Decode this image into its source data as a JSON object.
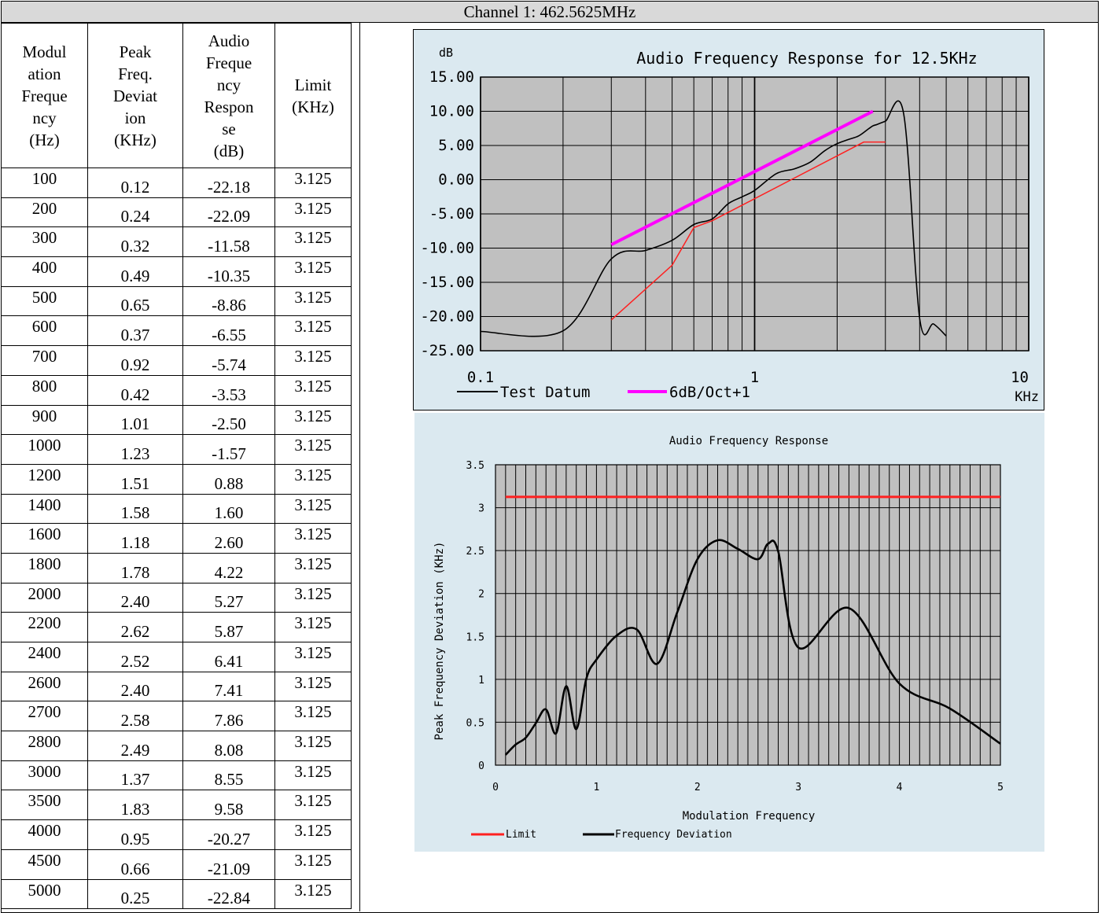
{
  "header": {
    "title": "Channel 1: 462.5625MHz"
  },
  "table": {
    "headers": [
      [
        "Modul",
        "ation",
        "Freque",
        "ncy",
        "(Hz)"
      ],
      [
        "Peak",
        "Freq.",
        "Deviat",
        "ion",
        "(KHz)"
      ],
      [
        "Audio",
        "Freque",
        "ncy",
        "Respon",
        "se",
        "(dB)"
      ],
      [
        "Limit",
        "(KHz)"
      ]
    ],
    "rows": [
      [
        "100",
        "0.12",
        "-22.18",
        "3.125"
      ],
      [
        "200",
        "0.24",
        "-22.09",
        "3.125"
      ],
      [
        "300",
        "0.32",
        "-11.58",
        "3.125"
      ],
      [
        "400",
        "0.49",
        "-10.35",
        "3.125"
      ],
      [
        "500",
        "0.65",
        "-8.86",
        "3.125"
      ],
      [
        "600",
        "0.37",
        "-6.55",
        "3.125"
      ],
      [
        "700",
        "0.92",
        "-5.74",
        "3.125"
      ],
      [
        "800",
        "0.42",
        "-3.53",
        "3.125"
      ],
      [
        "900",
        "1.01",
        "-2.50",
        "3.125"
      ],
      [
        "1000",
        "1.23",
        "-1.57",
        "3.125"
      ],
      [
        "1200",
        "1.51",
        "0.88",
        "3.125"
      ],
      [
        "1400",
        "1.58",
        "1.60",
        "3.125"
      ],
      [
        "1600",
        "1.18",
        "2.60",
        "3.125"
      ],
      [
        "1800",
        "1.78",
        "4.22",
        "3.125"
      ],
      [
        "2000",
        "2.40",
        "5.27",
        "3.125"
      ],
      [
        "2200",
        "2.62",
        "5.87",
        "3.125"
      ],
      [
        "2400",
        "2.52",
        "6.41",
        "3.125"
      ],
      [
        "2600",
        "2.40",
        "7.41",
        "3.125"
      ],
      [
        "2700",
        "2.58",
        "7.86",
        "3.125"
      ],
      [
        "2800",
        "2.49",
        "8.08",
        "3.125"
      ],
      [
        "3000",
        "1.37",
        "8.55",
        "3.125"
      ],
      [
        "3500",
        "1.83",
        "9.58",
        "3.125"
      ],
      [
        "4000",
        "0.95",
        "-20.27",
        "3.125"
      ],
      [
        "4500",
        "0.66",
        "-21.09",
        "3.125"
      ],
      [
        "5000",
        "0.25",
        "-22.84",
        "3.125"
      ]
    ]
  },
  "chart_data": [
    {
      "type": "line",
      "title": "Audio Frequency Response for 12.5KHz",
      "ylabel": "dB",
      "xlabel": "KHz",
      "x_scale": "log",
      "xlim": [
        0.1,
        10
      ],
      "ylim": [
        -25,
        15
      ],
      "x_tick_labels": [
        "0.1",
        "1",
        "10"
      ],
      "y_tick_labels": [
        "15.00",
        "10.00",
        "5.00",
        "0.00",
        "-5.00",
        "-10.00",
        "-15.00",
        "-20.00",
        "-25.00"
      ],
      "grid": true,
      "legend_position": "bottom",
      "background": "#c0c0c0",
      "series": [
        {
          "name": "Test Datum",
          "color": "#000000",
          "x": [
            0.1,
            0.2,
            0.3,
            0.4,
            0.5,
            0.6,
            0.7,
            0.8,
            0.9,
            1.0,
            1.2,
            1.4,
            1.6,
            1.8,
            2.0,
            2.2,
            2.4,
            2.6,
            2.7,
            2.8,
            3.0,
            3.5,
            4.0,
            4.5,
            5.0
          ],
          "y": [
            -22.18,
            -22.09,
            -11.58,
            -10.35,
            -8.86,
            -6.55,
            -5.74,
            -3.53,
            -2.5,
            -1.57,
            0.88,
            1.6,
            2.6,
            4.22,
            5.27,
            5.87,
            6.41,
            7.41,
            7.86,
            8.08,
            8.55,
            9.58,
            -20.27,
            -21.09,
            -22.84
          ]
        },
        {
          "name": "6dB/Oct+1",
          "color": "#ff00ff",
          "x": [
            0.3,
            2.7
          ],
          "y": [
            -9.5,
            10
          ]
        },
        {
          "name": "",
          "color": "#ff2020",
          "x": [
            0.3,
            0.5,
            0.6,
            0.7,
            2.5,
            3.0
          ],
          "y": [
            -20.5,
            -12.5,
            -7,
            -6,
            5.5,
            5.5
          ]
        }
      ]
    },
    {
      "type": "line",
      "title": "Audio Frequency Response",
      "xlabel": "Modulation Frequency",
      "ylabel": "Peak Frequency Deviation (KHz)",
      "xlim": [
        0,
        5
      ],
      "ylim": [
        0,
        3.5
      ],
      "x_tick_labels": [
        "0",
        "1",
        "2",
        "3",
        "4",
        "5"
      ],
      "y_tick_labels": [
        "0",
        "0.5",
        "1",
        "1.5",
        "2",
        "2.5",
        "3",
        "3.5"
      ],
      "grid": true,
      "legend_position": "bottom-left",
      "background": "#c0c0c0",
      "series": [
        {
          "name": "Limit",
          "color": "#ff2020",
          "x": [
            0.1,
            5.0
          ],
          "y": [
            3.125,
            3.125
          ]
        },
        {
          "name": "Frequency Deviation",
          "color": "#000000",
          "x": [
            0.1,
            0.2,
            0.3,
            0.4,
            0.5,
            0.6,
            0.7,
            0.8,
            0.9,
            1.0,
            1.2,
            1.4,
            1.6,
            1.8,
            2.0,
            2.2,
            2.4,
            2.6,
            2.7,
            2.8,
            3.0,
            3.5,
            4.0,
            4.5,
            5.0
          ],
          "y": [
            0.12,
            0.24,
            0.32,
            0.49,
            0.65,
            0.37,
            0.92,
            0.42,
            1.01,
            1.23,
            1.51,
            1.58,
            1.18,
            1.78,
            2.4,
            2.62,
            2.52,
            2.4,
            2.58,
            2.49,
            1.37,
            1.83,
            0.95,
            0.66,
            0.25
          ]
        }
      ]
    }
  ]
}
